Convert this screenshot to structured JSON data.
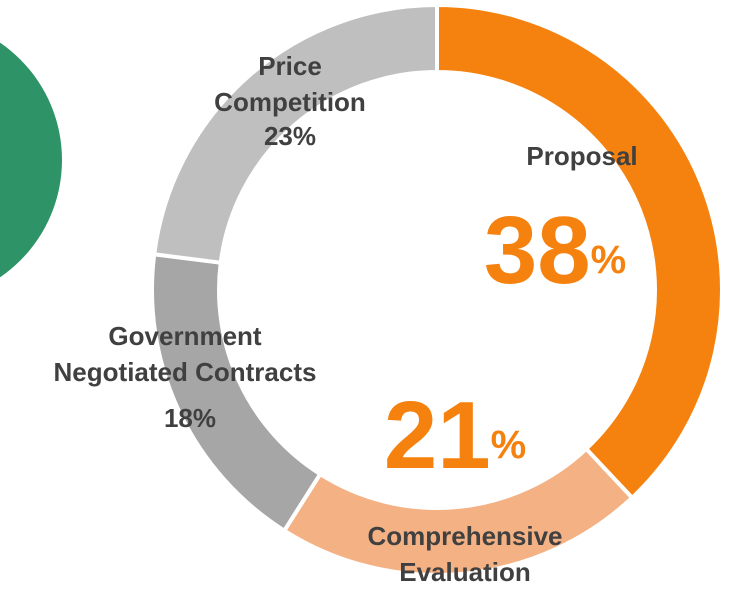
{
  "chart_data": {
    "type": "donut",
    "categories": [
      "Proposal",
      "Comprehensive Evaluation",
      "Government Negotiated Contracts",
      "Price Competition"
    ],
    "values": [
      38,
      21,
      18,
      23
    ],
    "value_labels": [
      "38%",
      "21%",
      "18%",
      "23%"
    ],
    "colors": [
      "#f5820f",
      "#f4b183",
      "#a6a6a6",
      "#bfbfbf"
    ]
  }
}
